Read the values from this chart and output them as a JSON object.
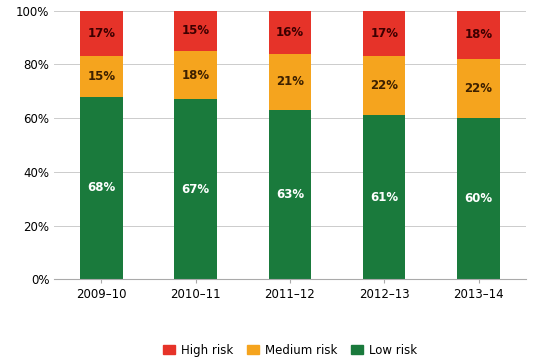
{
  "categories": [
    "2009–10",
    "2010–11",
    "2011–12",
    "2012–13",
    "2013–14"
  ],
  "low_risk": [
    68,
    67,
    63,
    61,
    60
  ],
  "medium_risk": [
    15,
    18,
    21,
    22,
    22
  ],
  "high_risk": [
    17,
    15,
    16,
    17,
    18
  ],
  "low_risk_color": "#1a7a3c",
  "medium_risk_color": "#f5a41e",
  "high_risk_color": "#e63329",
  "low_risk_label": "Low risk",
  "medium_risk_label": "Medium risk",
  "high_risk_label": "High risk",
  "bar_width": 0.45,
  "ylim": [
    0,
    100
  ],
  "yticks": [
    0,
    20,
    40,
    60,
    80,
    100
  ],
  "ytick_labels": [
    "0%",
    "20%",
    "40%",
    "60%",
    "80%",
    "100%"
  ],
  "background_color": "#ffffff",
  "grid_color": "#cccccc",
  "label_fontsize": 8.5,
  "tick_fontsize": 8.5,
  "legend_fontsize": 8.5,
  "low_risk_text_color": "#ffffff",
  "medium_risk_text_color": "#3d2000",
  "high_risk_text_color": "#3d0000"
}
